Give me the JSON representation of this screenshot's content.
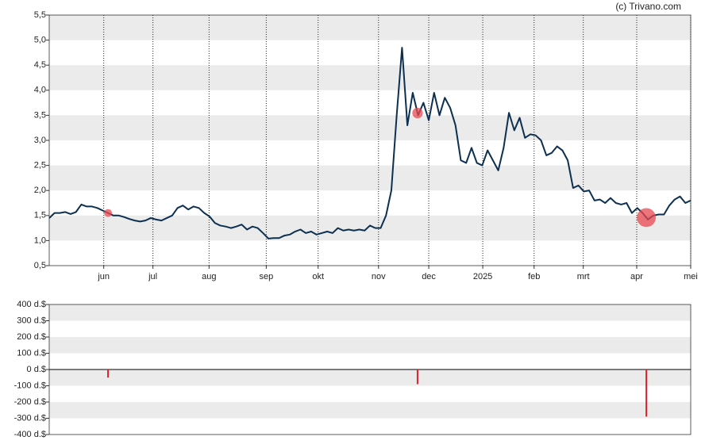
{
  "credit": "(c) Trivano.com",
  "chart_data": [
    {
      "type": "line",
      "grid": true,
      "marker_color": "#e8474f",
      "xlim": [
        0,
        120
      ],
      "xticks": [
        {
          "value": 10.2,
          "label": "jun"
        },
        {
          "value": 19.4,
          "label": "jul"
        },
        {
          "value": 29.9,
          "label": "aug"
        },
        {
          "value": 40.6,
          "label": "sep"
        },
        {
          "value": 50.3,
          "label": "okt"
        },
        {
          "value": 61.6,
          "label": "nov"
        },
        {
          "value": 71.0,
          "label": "dec"
        },
        {
          "value": 81.1,
          "label": "2025"
        },
        {
          "value": 90.7,
          "label": "feb"
        },
        {
          "value": 99.9,
          "label": "mrt"
        },
        {
          "value": 109.9,
          "label": "apr"
        },
        {
          "value": 120,
          "label": "mei"
        }
      ],
      "ylim": [
        0.5,
        5.5
      ],
      "yticks": [
        {
          "value": 0.5,
          "label": "0,5"
        },
        {
          "value": 1.0,
          "label": "1,0"
        },
        {
          "value": 1.5,
          "label": "1,5"
        },
        {
          "value": 2.0,
          "label": "2,0"
        },
        {
          "value": 2.5,
          "label": "2,5"
        },
        {
          "value": 3.0,
          "label": "3,0"
        },
        {
          "value": 3.5,
          "label": "3,5"
        },
        {
          "value": 4.0,
          "label": "4,0"
        },
        {
          "value": 4.5,
          "label": "4,5"
        },
        {
          "value": 5.0,
          "label": "5,0"
        },
        {
          "value": 5.5,
          "label": "5,5"
        }
      ],
      "x": [
        0,
        1,
        2,
        3,
        4,
        5,
        6,
        7,
        8,
        9,
        10,
        11,
        12,
        13,
        14,
        15,
        16,
        17,
        18,
        19,
        20,
        21,
        22,
        23,
        24,
        25,
        26,
        27,
        28,
        29,
        30,
        31,
        32,
        33,
        34,
        35,
        36,
        37,
        38,
        39,
        40,
        41,
        42,
        43,
        44,
        45,
        46,
        47,
        48,
        49,
        50,
        51,
        52,
        53,
        54,
        55,
        56,
        57,
        58,
        59,
        60,
        61,
        62,
        63,
        64,
        65,
        66,
        67,
        68,
        69,
        70,
        71,
        72,
        73,
        74,
        75,
        76,
        77,
        78,
        79,
        80,
        81,
        82,
        83,
        84,
        85,
        86,
        87,
        88,
        89,
        90,
        91,
        92,
        93,
        94,
        95,
        96,
        97,
        98,
        99,
        100,
        101,
        102,
        103,
        104,
        105,
        106,
        107,
        108,
        109,
        110,
        111,
        112,
        113,
        114,
        115,
        116,
        117,
        118,
        119,
        120
      ],
      "series": [
        {
          "color": "#0d3050",
          "values": [
            1.45,
            1.55,
            1.55,
            1.57,
            1.53,
            1.57,
            1.72,
            1.68,
            1.68,
            1.65,
            1.6,
            1.55,
            1.5,
            1.5,
            1.47,
            1.43,
            1.4,
            1.38,
            1.4,
            1.45,
            1.42,
            1.4,
            1.45,
            1.5,
            1.65,
            1.7,
            1.62,
            1.68,
            1.65,
            1.55,
            1.48,
            1.35,
            1.3,
            1.28,
            1.25,
            1.28,
            1.32,
            1.22,
            1.28,
            1.25,
            1.15,
            1.04,
            1.05,
            1.05,
            1.1,
            1.12,
            1.18,
            1.22,
            1.15,
            1.18,
            1.12,
            1.15,
            1.18,
            1.15,
            1.25,
            1.2,
            1.22,
            1.2,
            1.22,
            1.2,
            1.3,
            1.25,
            1.25,
            1.5,
            2.0,
            3.5,
            4.85,
            3.3,
            3.95,
            3.5,
            3.75,
            3.4,
            3.95,
            3.5,
            3.85,
            3.65,
            3.3,
            2.6,
            2.55,
            2.85,
            2.55,
            2.5,
            2.8,
            2.6,
            2.4,
            2.85,
            3.55,
            3.2,
            3.45,
            3.05,
            3.12,
            3.1,
            3.0,
            2.7,
            2.75,
            2.88,
            2.8,
            2.6,
            2.05,
            2.1,
            1.98,
            2.0,
            1.8,
            1.82,
            1.75,
            1.85,
            1.75,
            1.72,
            1.75,
            1.55,
            1.65,
            1.55,
            1.42,
            1.5,
            1.52,
            1.52,
            1.7,
            1.82,
            1.88,
            1.75,
            1.8
          ]
        }
      ]
    },
    {
      "type": "bar",
      "grid": true,
      "xlim": [
        0,
        120
      ],
      "ylim": [
        -400,
        400
      ],
      "yticks": [
        {
          "value": -400,
          "label": "-400 d.$"
        },
        {
          "value": -300,
          "label": "-300 d.$"
        },
        {
          "value": -200,
          "label": "-200 d.$"
        },
        {
          "value": -100,
          "label": "-100 d.$"
        },
        {
          "value": 0,
          "label": "0 d.$"
        },
        {
          "value": 100,
          "label": "100 d.$"
        },
        {
          "value": 200,
          "label": "200 d.$"
        },
        {
          "value": 300,
          "label": "300 d.$"
        },
        {
          "value": 400,
          "label": "400 d.$"
        }
      ],
      "series": [
        {
          "color": "#e0202a",
          "x": [
            11.0,
            68.9,
            111.7
          ],
          "values": [
            -50,
            -90,
            -290
          ]
        }
      ]
    }
  ]
}
